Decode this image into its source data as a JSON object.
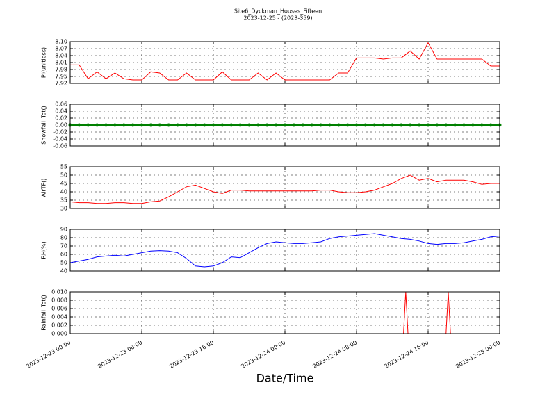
{
  "chart_data": {
    "title": "Site6_Dyckman_Houses_Fifteen",
    "subtitle": "2023-12-25 - (2023-359)",
    "xlabel": "Date/Time",
    "xlim": [
      "2023-12-23 00:00",
      "2023-12-25 00:00"
    ],
    "xticks": [
      "2023-12-23 00:00",
      "2023-12-23 08:00",
      "2023-12-23 16:00",
      "2023-12-24 00:00",
      "2023-12-24 08:00",
      "2023-12-24 16:00",
      "2023-12-25 00:00"
    ],
    "grid": true,
    "x": [
      "2023-12-23 00:00",
      "2023-12-23 01:00",
      "2023-12-23 02:00",
      "2023-12-23 03:00",
      "2023-12-23 04:00",
      "2023-12-23 05:00",
      "2023-12-23 06:00",
      "2023-12-23 07:00",
      "2023-12-23 08:00",
      "2023-12-23 09:00",
      "2023-12-23 10:00",
      "2023-12-23 11:00",
      "2023-12-23 12:00",
      "2023-12-23 13:00",
      "2023-12-23 14:00",
      "2023-12-23 15:00",
      "2023-12-23 16:00",
      "2023-12-23 17:00",
      "2023-12-23 18:00",
      "2023-12-23 19:00",
      "2023-12-23 20:00",
      "2023-12-23 21:00",
      "2023-12-23 22:00",
      "2023-12-23 23:00",
      "2023-12-24 00:00",
      "2023-12-24 01:00",
      "2023-12-24 02:00",
      "2023-12-24 03:00",
      "2023-12-24 04:00",
      "2023-12-24 05:00",
      "2023-12-24 06:00",
      "2023-12-24 07:00",
      "2023-12-24 08:00",
      "2023-12-24 09:00",
      "2023-12-24 10:00",
      "2023-12-24 11:00",
      "2023-12-24 12:00",
      "2023-12-24 13:00",
      "2023-12-24 14:00",
      "2023-12-24 15:00",
      "2023-12-24 16:00",
      "2023-12-24 17:00",
      "2023-12-24 18:00",
      "2023-12-24 19:00",
      "2023-12-24 20:00",
      "2023-12-24 21:00",
      "2023-12-24 22:00",
      "2023-12-24 23:00",
      "2023-12-25 00:00"
    ],
    "panels": [
      {
        "type": "line",
        "ylabel": "Pl(unitless)",
        "color": "#ff0000",
        "ylim": [
          7.92,
          8.1
        ],
        "yticks": [
          7.92,
          7.95,
          7.98,
          8.01,
          8.04,
          8.07,
          {
            "value": 8.1,
            "label": "8.10"
          }
        ],
        "values": [
          8.0,
          8.0,
          7.94,
          7.97,
          7.94,
          7.965,
          7.94,
          7.935,
          7.935,
          7.97,
          7.965,
          7.935,
          7.935,
          7.965,
          7.935,
          7.935,
          7.935,
          7.97,
          7.935,
          7.935,
          7.935,
          7.965,
          7.935,
          7.965,
          7.935,
          7.935,
          7.935,
          7.935,
          7.935,
          7.935,
          7.965,
          7.965,
          8.03,
          8.03,
          8.03,
          8.025,
          8.03,
          8.03,
          8.06,
          8.025,
          8.095,
          8.025,
          8.025,
          8.025,
          8.025,
          8.025,
          8.025,
          7.995,
          7.995
        ]
      },
      {
        "type": "line",
        "ylabel": "Snowfall_Tot()",
        "color": "#008000",
        "markers": true,
        "ylim": [
          -0.06,
          0.06
        ],
        "yticks": [
          -0.06,
          -0.04,
          -0.02,
          {
            "value": 0,
            "label": "0.00"
          },
          0.02,
          0.04,
          0.06
        ],
        "values": [
          0,
          0,
          0,
          0,
          0,
          0,
          0,
          0,
          0,
          0,
          0,
          0,
          0,
          0,
          0,
          0,
          0,
          0,
          0,
          0,
          0,
          0,
          0,
          0,
          0,
          0,
          0,
          0,
          0,
          0,
          0,
          0,
          0,
          0,
          0,
          0,
          0,
          0,
          0,
          0,
          0,
          0,
          0,
          0,
          0,
          0,
          0,
          0,
          0
        ]
      },
      {
        "type": "line",
        "ylabel": "AirTF()",
        "color": "#ff0000",
        "ylim": [
          30,
          55
        ],
        "yticks": [
          30,
          35,
          40,
          45,
          50,
          55
        ],
        "values": [
          34,
          33.5,
          33.5,
          33,
          33,
          33.5,
          33.5,
          33,
          33,
          34,
          34.5,
          37,
          40,
          43,
          44,
          42,
          40,
          39,
          41,
          41,
          40.5,
          40.5,
          40.5,
          40.5,
          40.5,
          40.5,
          40.5,
          40.5,
          41,
          41,
          40,
          39.5,
          39.5,
          40,
          41,
          43,
          45,
          48,
          50,
          47,
          48,
          46,
          47,
          47,
          47,
          46,
          44.5,
          45,
          45
        ]
      },
      {
        "type": "line",
        "ylabel": "RH(%)",
        "color": "#0000ff",
        "ylim": [
          40,
          90
        ],
        "yticks": [
          40,
          50,
          60,
          70,
          80,
          90
        ],
        "values": [
          50,
          52,
          54,
          57,
          58,
          59,
          58,
          60,
          62,
          64,
          64.5,
          64,
          62,
          55,
          46,
          45,
          46,
          50,
          57,
          56,
          62,
          68,
          73,
          75,
          74,
          73,
          73,
          74,
          75,
          79,
          81,
          82,
          83,
          84,
          85,
          83,
          81,
          79,
          78,
          76,
          73,
          72,
          73,
          73,
          74,
          76,
          78,
          81,
          82
        ]
      },
      {
        "type": "line",
        "ylabel": "Rainfall_Tot()",
        "color": "#ff0000",
        "ylim": [
          0,
          0.01
        ],
        "yticks": [
          {
            "value": 0,
            "label": "0.000"
          },
          {
            "value": 0.002,
            "label": "0.002"
          },
          {
            "value": 0.004,
            "label": "0.004"
          },
          {
            "value": 0.006,
            "label": "0.006"
          },
          {
            "value": 0.008,
            "label": "0.008"
          },
          {
            "value": 0.01,
            "label": "0.010"
          }
        ],
        "x": [
          "2023-12-23 00:00",
          "2023-12-24 13:15",
          "2023-12-24 13:30",
          "2023-12-24 13:45",
          "2023-12-24 18:00",
          "2023-12-24 18:15",
          "2023-12-24 18:30",
          "2023-12-25 00:00"
        ],
        "values": [
          0,
          0,
          0.01,
          0,
          0,
          0.01,
          0,
          0
        ]
      }
    ]
  }
}
